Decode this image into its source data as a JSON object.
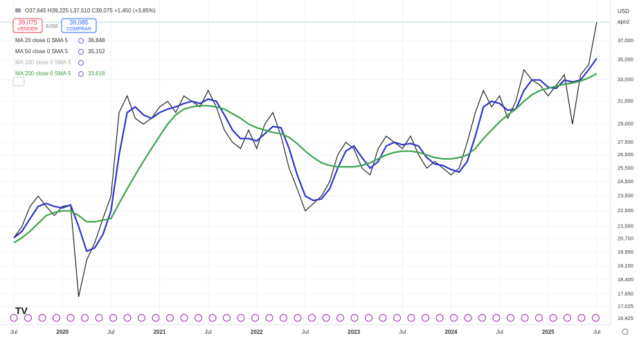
{
  "header": {
    "ohlc": "O37,645 H39,225 L37,510 C39,075 +1,450 (+3,85%)",
    "sell_price": "39,075",
    "sell_label": "VENDER",
    "spread": "0,010",
    "buy_price": "39,085",
    "buy_label": "COMPRAR",
    "currency": "USD",
    "price_badge": "apoz"
  },
  "chart_data": {
    "type": "line",
    "log_scale": true,
    "legend_rows": [
      {
        "text": "MA 20 close 0 SMA 5",
        "value": "36,848",
        "color": "#333333"
      },
      {
        "text": "MA 50 close 0 SMA 5",
        "value": "35,152",
        "color": "#333333"
      },
      {
        "text": "MA 100 close 0 SMA 5",
        "value": "",
        "color": "#aaaaaa"
      },
      {
        "text": "MA 200 close 0 SMA 5",
        "value": "33,618",
        "color": "#3b9a3b"
      }
    ],
    "categories": [
      "Jul",
      null,
      null,
      null,
      null,
      null,
      "2020",
      null,
      null,
      null,
      null,
      null,
      "Jul",
      null,
      null,
      null,
      null,
      null,
      "2021",
      null,
      null,
      null,
      null,
      null,
      "Jul",
      null,
      null,
      null,
      null,
      null,
      "2022",
      null,
      null,
      null,
      null,
      null,
      "Jul",
      null,
      null,
      null,
      null,
      null,
      "2023",
      null,
      null,
      null,
      null,
      null,
      "Jul",
      null,
      null,
      null,
      null,
      null,
      "2024",
      null,
      null,
      null,
      null,
      null,
      "Jul",
      null,
      null,
      null,
      null,
      null,
      "2025",
      null,
      null,
      null,
      null,
      null,
      "Jul"
    ],
    "series": [
      {
        "color": "#222222",
        "width": 1.2,
        "values": [
          20800,
          21500,
          22800,
          23500,
          22800,
          22200,
          22800,
          22900,
          17500,
          19500,
          20500,
          22000,
          23500,
          30000,
          31500,
          29500,
          29000,
          29500,
          30500,
          31000,
          30000,
          31500,
          31000,
          30500,
          32000,
          30500,
          28500,
          27500,
          27000,
          28500,
          27000,
          29000,
          30000,
          28000,
          25500,
          24000,
          22500,
          23000,
          23500,
          24500,
          26500,
          27500,
          27000,
          25500,
          25000,
          27000,
          28000,
          27500,
          27000,
          28000,
          26500,
          25500,
          26000,
          25500,
          25000,
          25500,
          27500,
          30000,
          32000,
          30500,
          31500,
          29500,
          31000,
          34000,
          33000,
          32500,
          31500,
          32500,
          33500,
          29000,
          33500,
          34500,
          39075
        ]
      },
      {
        "color": "#2f35c8",
        "width": 2.2,
        "values": [
          20800,
          21200,
          22000,
          22800,
          23000,
          22800,
          22700,
          22900,
          21500,
          20000,
          20200,
          21000,
          22500,
          26500,
          30000,
          30500,
          29800,
          29500,
          30000,
          30300,
          30500,
          30800,
          31000,
          30800,
          31200,
          31000,
          29800,
          28500,
          27800,
          27800,
          27600,
          28200,
          28800,
          28700,
          27000,
          25000,
          23500,
          23200,
          23300,
          24000,
          25500,
          26800,
          27200,
          26300,
          25500,
          26000,
          27200,
          27500,
          27300,
          27400,
          27200,
          26300,
          25800,
          25700,
          25400,
          25200,
          26000,
          28000,
          30500,
          31000,
          30800,
          30200,
          30300,
          32000,
          33000,
          33000,
          32300,
          32200,
          33000,
          32800,
          33000,
          34000,
          35152
        ]
      },
      {
        "color": "#3fa34d",
        "width": 2.2,
        "values": [
          20500,
          20800,
          21200,
          21700,
          22200,
          22400,
          22500,
          22500,
          22200,
          21800,
          21800,
          21900,
          22000,
          23000,
          24000,
          25000,
          26000,
          27000,
          28000,
          29000,
          29800,
          30300,
          30500,
          30600,
          30600,
          30500,
          30300,
          29900,
          29500,
          29000,
          28700,
          28500,
          28300,
          28200,
          27900,
          27400,
          26800,
          26300,
          25900,
          25700,
          25600,
          25600,
          25600,
          25700,
          25900,
          26200,
          26500,
          26700,
          26800,
          26800,
          26700,
          26500,
          26300,
          26200,
          26200,
          26300,
          26500,
          27000,
          27800,
          28500,
          29200,
          29800,
          30300,
          31000,
          31600,
          32000,
          32200,
          32400,
          32600,
          32700,
          32900,
          33200,
          33618
        ]
      }
    ],
    "ylim": [
      16130,
      40360
    ],
    "yticks": [
      {
        "value": 37000,
        "label": "37,000"
      },
      {
        "value": 35000,
        "label": "35,000"
      },
      {
        "value": 33000,
        "label": "33,000"
      },
      {
        "value": 31000,
        "label": "31,000"
      },
      {
        "value": 29000,
        "label": "29,000"
      },
      {
        "value": 27500,
        "label": "27,500"
      },
      {
        "value": 26500,
        "label": "26,500"
      },
      {
        "value": 25500,
        "label": "25,500"
      },
      {
        "value": 24500,
        "label": "24,500"
      },
      {
        "value": 23500,
        "label": "23,500"
      },
      {
        "value": 22500,
        "label": "22,500"
      },
      {
        "value": 21500,
        "label": "21,500"
      },
      {
        "value": 20750,
        "label": "20,750"
      },
      {
        "value": 19950,
        "label": "19,950"
      },
      {
        "value": 19150,
        "label": "19,150"
      },
      {
        "value": 18400,
        "label": "18,400"
      },
      {
        "value": 17650,
        "label": "17,650"
      },
      {
        "value": 17025,
        "label": "17,025"
      },
      {
        "value": 16425,
        "label": "16,425"
      }
    ],
    "grid": true
  }
}
